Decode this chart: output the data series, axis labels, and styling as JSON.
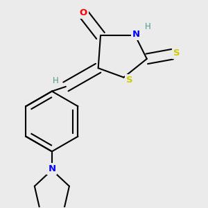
{
  "bg_color": "#ebebeb",
  "atom_colors": {
    "C": "#000000",
    "N": "#0000ff",
    "O": "#ff0000",
    "S": "#cccc00",
    "H_gray": "#4a9a8a"
  },
  "line_color": "#000000",
  "figsize": [
    3.0,
    3.0
  ],
  "dpi": 100
}
